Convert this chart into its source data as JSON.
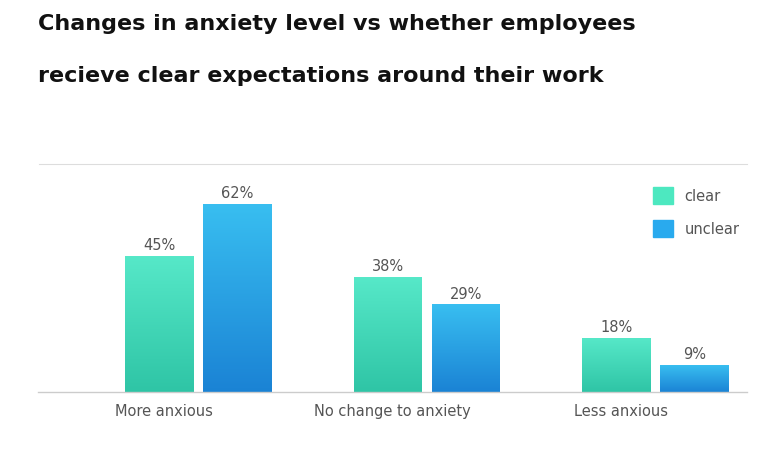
{
  "title_line1": "Changes in anxiety level vs whether employees",
  "title_line2": "recieve clear expectations around their work",
  "categories": [
    "More anxious",
    "No change to anxiety",
    "Less anxious"
  ],
  "clear_values": [
    45,
    38,
    18
  ],
  "unclear_values": [
    62,
    29,
    9
  ],
  "clear_color_bottom": "#2ec4a5",
  "clear_color_top": "#56e8c8",
  "unclear_color_bottom": "#1a82d4",
  "unclear_color_top": "#38bef0",
  "bar_width": 0.3,
  "bar_gap": 0.04,
  "ylim": [
    0,
    70
  ],
  "legend_labels": [
    "clear",
    "unclear"
  ],
  "legend_clear_color": "#4de8c0",
  "legend_unclear_color": "#29aaee",
  "label_fontsize": 10.5,
  "title_fontsize": 16,
  "tick_fontsize": 10.5,
  "background_color": "#ffffff"
}
